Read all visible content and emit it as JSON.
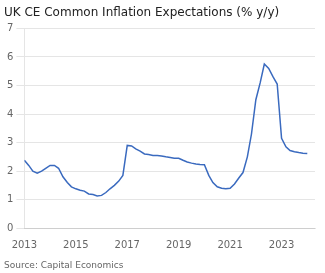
{
  "chart_data": {
    "type": "line",
    "title": "UK CE Common Inflation Expectations (% y/y)",
    "annotations": [
      "Source: Capital Economics"
    ],
    "color": "#3a6abf",
    "grid": "y",
    "xlim": [
      2013.0,
      2024.3
    ],
    "xticks": [
      2013,
      2015,
      2017,
      2019,
      2021,
      2023
    ],
    "ylim": [
      0,
      7
    ],
    "yticks": [
      0,
      1,
      2,
      3,
      4,
      5,
      6,
      7
    ],
    "x": [
      2013.0,
      2013.17,
      2013.33,
      2013.5,
      2013.67,
      2013.83,
      2014.0,
      2014.17,
      2014.33,
      2014.5,
      2014.67,
      2014.83,
      2015.0,
      2015.17,
      2015.33,
      2015.5,
      2015.67,
      2015.83,
      2016.0,
      2016.17,
      2016.33,
      2016.5,
      2016.67,
      2016.83,
      2017.0,
      2017.17,
      2017.33,
      2017.5,
      2017.67,
      2017.83,
      2018.0,
      2018.17,
      2018.33,
      2018.5,
      2018.67,
      2018.83,
      2019.0,
      2019.17,
      2019.33,
      2019.5,
      2019.67,
      2019.83,
      2020.0,
      2020.17,
      2020.33,
      2020.5,
      2020.67,
      2020.83,
      2021.0,
      2021.17,
      2021.33,
      2021.5,
      2021.67,
      2021.83,
      2022.0,
      2022.17,
      2022.33,
      2022.5,
      2022.67,
      2022.83,
      2023.0,
      2023.17,
      2023.33,
      2023.5,
      2023.67,
      2023.83,
      2024.0
    ],
    "values": [
      2.38,
      2.2,
      2.0,
      1.93,
      2.0,
      2.1,
      2.2,
      2.2,
      2.1,
      1.8,
      1.6,
      1.45,
      1.38,
      1.33,
      1.3,
      1.2,
      1.18,
      1.13,
      1.15,
      1.25,
      1.38,
      1.5,
      1.65,
      1.85,
      2.9,
      2.88,
      2.78,
      2.7,
      2.6,
      2.58,
      2.55,
      2.55,
      2.53,
      2.5,
      2.48,
      2.45,
      2.45,
      2.38,
      2.32,
      2.28,
      2.25,
      2.23,
      2.22,
      1.85,
      1.6,
      1.45,
      1.4,
      1.38,
      1.4,
      1.55,
      1.75,
      1.95,
      2.5,
      3.3,
      4.5,
      5.1,
      5.75,
      5.6,
      5.3,
      5.05,
      3.15,
      2.85,
      2.72,
      2.68,
      2.65,
      2.63,
      2.62
    ]
  }
}
